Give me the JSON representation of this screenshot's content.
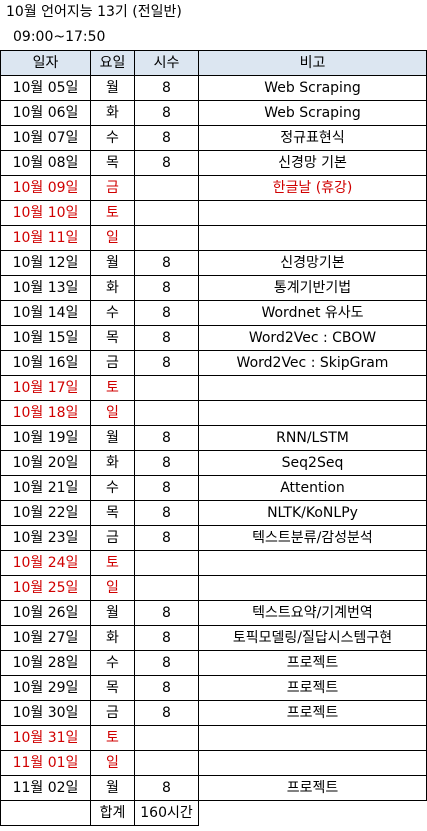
{
  "title": "10월 언어지능 13기 (전일반)",
  "time": "09:00~17:50",
  "headers": {
    "date": "일자",
    "day": "요일",
    "hours": "시수",
    "note": "비고"
  },
  "rows": [
    {
      "date": "10월 05일",
      "day": "월",
      "hours": "8",
      "note": "Web Scraping",
      "holiday": false
    },
    {
      "date": "10월 06일",
      "day": "화",
      "hours": "8",
      "note": "Web Scraping",
      "holiday": false
    },
    {
      "date": "10월 07일",
      "day": "수",
      "hours": "8",
      "note": "정규표현식",
      "holiday": false
    },
    {
      "date": "10월 08일",
      "day": "목",
      "hours": "8",
      "note": "신경망 기본",
      "holiday": false
    },
    {
      "date": "10월 09일",
      "day": "금",
      "hours": "",
      "note": "한글날 (휴강)",
      "holiday": true
    },
    {
      "date": "10월 10일",
      "day": "토",
      "hours": "",
      "note": "",
      "holiday": true
    },
    {
      "date": "10월 11일",
      "day": "일",
      "hours": "",
      "note": "",
      "holiday": true
    },
    {
      "date": "10월 12일",
      "day": "월",
      "hours": "8",
      "note": "신경망기본",
      "holiday": false
    },
    {
      "date": "10월 13일",
      "day": "화",
      "hours": "8",
      "note": "통계기반기법",
      "holiday": false
    },
    {
      "date": "10월 14일",
      "day": "수",
      "hours": "8",
      "note": "Wordnet 유사도",
      "holiday": false
    },
    {
      "date": "10월 15일",
      "day": "목",
      "hours": "8",
      "note": "Word2Vec : CBOW",
      "holiday": false
    },
    {
      "date": "10월 16일",
      "day": "금",
      "hours": "8",
      "note": "Word2Vec : SkipGram",
      "holiday": false
    },
    {
      "date": "10월 17일",
      "day": "토",
      "hours": "",
      "note": "",
      "holiday": true
    },
    {
      "date": "10월 18일",
      "day": "일",
      "hours": "",
      "note": "",
      "holiday": true
    },
    {
      "date": "10월 19일",
      "day": "월",
      "hours": "8",
      "note": "RNN/LSTM",
      "holiday": false
    },
    {
      "date": "10월 20일",
      "day": "화",
      "hours": "8",
      "note": "Seq2Seq",
      "holiday": false
    },
    {
      "date": "10월 21일",
      "day": "수",
      "hours": "8",
      "note": "Attention",
      "holiday": false
    },
    {
      "date": "10월 22일",
      "day": "목",
      "hours": "8",
      "note": "NLTK/KoNLPy",
      "holiday": false
    },
    {
      "date": "10월 23일",
      "day": "금",
      "hours": "8",
      "note": "텍스트분류/감성분석",
      "holiday": false
    },
    {
      "date": "10월 24일",
      "day": "토",
      "hours": "",
      "note": "",
      "holiday": true
    },
    {
      "date": "10월 25일",
      "day": "일",
      "hours": "",
      "note": "",
      "holiday": true
    },
    {
      "date": "10월 26일",
      "day": "월",
      "hours": "8",
      "note": "텍스트요약/기계번역",
      "holiday": false
    },
    {
      "date": "10월 27일",
      "day": "화",
      "hours": "8",
      "note": "토픽모델링/질답시스템구현",
      "holiday": false
    },
    {
      "date": "10월 28일",
      "day": "수",
      "hours": "8",
      "note": "프로젝트",
      "holiday": false
    },
    {
      "date": "10월 29일",
      "day": "목",
      "hours": "8",
      "note": "프로젝트",
      "holiday": false
    },
    {
      "date": "10월 30일",
      "day": "금",
      "hours": "8",
      "note": "프로젝트",
      "holiday": false
    },
    {
      "date": "10월 31일",
      "day": "토",
      "hours": "",
      "note": "",
      "holiday": true
    },
    {
      "date": "11월 01일",
      "day": "일",
      "hours": "",
      "note": "",
      "holiday": true
    },
    {
      "date": "11월 02일",
      "day": "월",
      "hours": "8",
      "note": "프로젝트",
      "holiday": false
    }
  ],
  "total": {
    "label": "합계",
    "value": "160시간"
  }
}
